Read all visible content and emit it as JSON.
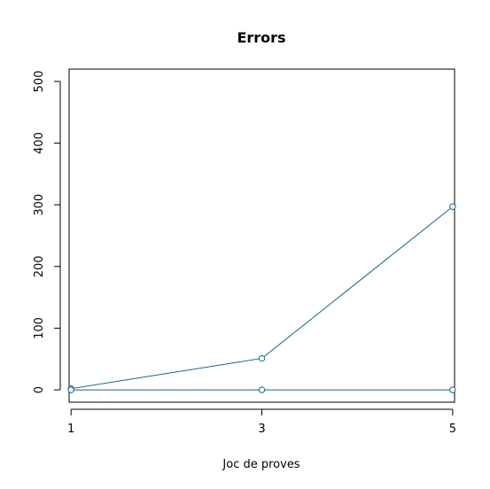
{
  "chart_data": {
    "type": "line",
    "title": "Errors",
    "xlabel": "Joc de proves",
    "ylabel": "",
    "x": [
      1,
      3,
      5
    ],
    "x_ticks": [
      "1",
      "3",
      "5"
    ],
    "xlim": [
      0.98,
      5.02
    ],
    "ylim": [
      -20,
      520
    ],
    "y_ticks": [
      "0",
      "100",
      "200",
      "300",
      "400",
      "500"
    ],
    "grid": false,
    "series": [
      {
        "values": [
          2,
          51,
          297
        ],
        "color": "#1a6687",
        "marker": "open-circle"
      },
      {
        "values": [
          0,
          0,
          0
        ],
        "color": "#1a6687",
        "marker": "open-circle"
      }
    ]
  }
}
